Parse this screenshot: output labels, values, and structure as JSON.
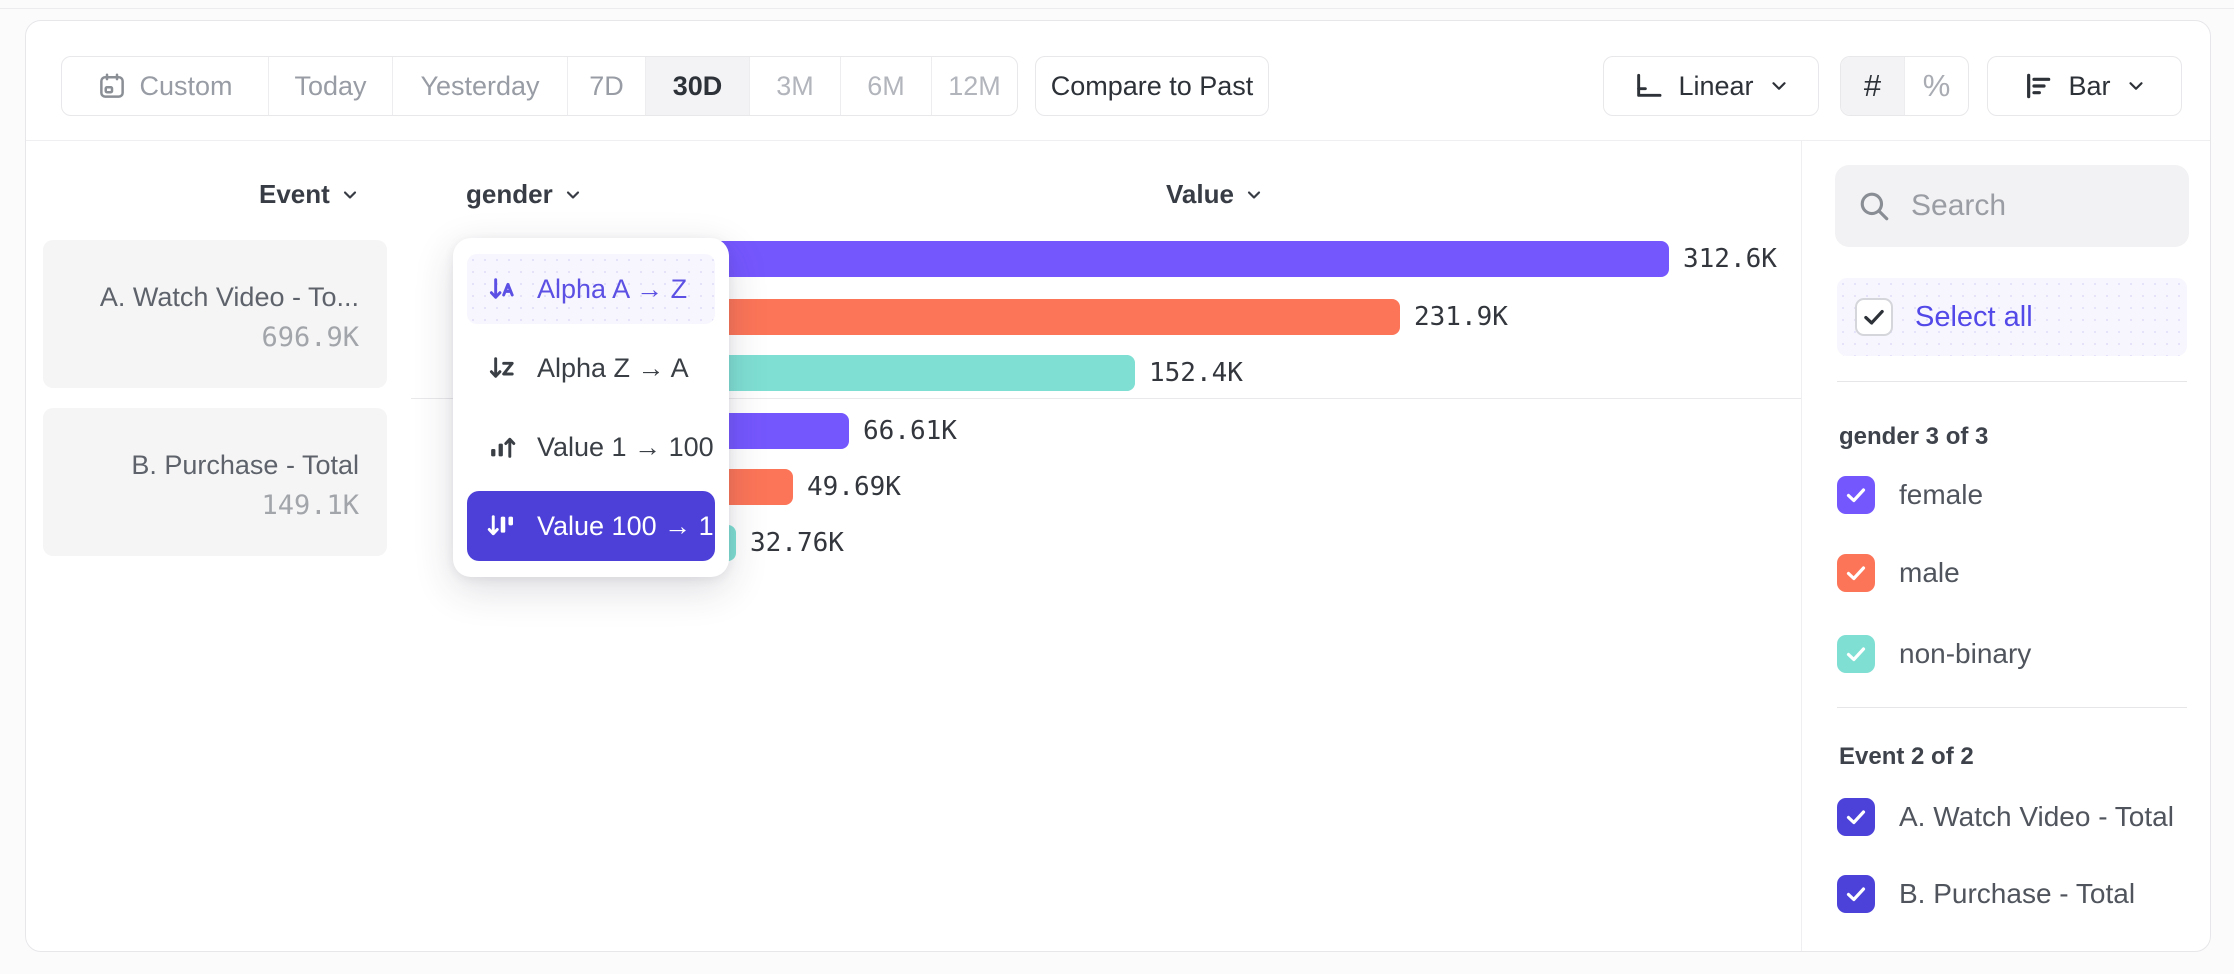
{
  "toolbar": {
    "date_ranges": [
      {
        "label": "Custom",
        "selected": false
      },
      {
        "label": "Today",
        "selected": false
      },
      {
        "label": "Yesterday",
        "selected": false
      },
      {
        "label": "7D",
        "selected": false
      },
      {
        "label": "30D",
        "selected": true
      },
      {
        "label": "3M",
        "selected": false
      },
      {
        "label": "6M",
        "selected": false
      },
      {
        "label": "12M",
        "selected": false
      }
    ],
    "compare_button": "Compare to Past",
    "scale_selector": {
      "label": "Linear"
    },
    "number_format": {
      "options": [
        "#",
        "%"
      ],
      "selected": "#"
    },
    "chart_type_selector": {
      "label": "Bar"
    }
  },
  "columns": {
    "event": "Event",
    "breakdown": "gender",
    "value": "Value"
  },
  "event_list": [
    {
      "name": "A. Watch Video - To...",
      "total": "696.9K"
    },
    {
      "name": "B. Purchase - Total",
      "total": "149.1K"
    }
  ],
  "sort_menu": {
    "items": [
      {
        "label": "Alpha A → Z",
        "state": "highlighted"
      },
      {
        "label": "Alpha Z → A",
        "state": "default"
      },
      {
        "label": "Value 1 → 100",
        "state": "default"
      },
      {
        "label": "Value 100 → 1",
        "state": "selected"
      }
    ]
  },
  "chart_data": {
    "type": "bar",
    "orientation": "horizontal",
    "breakdown_property": "gender",
    "value_axis_label": "Value",
    "category_axis_label": "Event",
    "max_value": 312600,
    "series_colors": {
      "female": "#7557FE",
      "male": "#FC7558",
      "non-binary": "#7FDFD3"
    },
    "groups": [
      {
        "event": "A. Watch Video - Total",
        "bars": [
          {
            "segment": "female",
            "value": 312600,
            "label": "312.6K",
            "color": "#7557FE"
          },
          {
            "segment": "male",
            "value": 231900,
            "label": "231.9K",
            "color": "#FC7558"
          },
          {
            "segment": "non-binary",
            "value": 152400,
            "label": "152.4K",
            "color": "#7FDFD3"
          }
        ]
      },
      {
        "event": "B. Purchase - Total",
        "bars": [
          {
            "segment": "female",
            "value": 66610,
            "label": "66.61K",
            "color": "#7557FE"
          },
          {
            "segment": "male",
            "value": 49690,
            "label": "49.69K",
            "color": "#FC7558"
          },
          {
            "segment": "non-binary",
            "value": 32760,
            "label": "32.76K",
            "color": "#7FDFD3"
          }
        ]
      }
    ]
  },
  "sidebar": {
    "search": {
      "placeholder": "Search"
    },
    "select_all": {
      "label": "Select all",
      "checked": true
    },
    "sections": [
      {
        "title": "gender 3 of 3",
        "items": [
          {
            "label": "female",
            "checked": true,
            "color": "#7557FE"
          },
          {
            "label": "male",
            "checked": true,
            "color": "#FC7558"
          },
          {
            "label": "non-binary",
            "checked": true,
            "color": "#7FDFD3"
          }
        ]
      },
      {
        "title": "Event 2 of 2",
        "items": [
          {
            "label": "A. Watch Video - Total",
            "checked": true,
            "color": "#4C41D9"
          },
          {
            "label": "B. Purchase - Total",
            "checked": true,
            "color": "#4C41D9"
          }
        ]
      }
    ]
  }
}
